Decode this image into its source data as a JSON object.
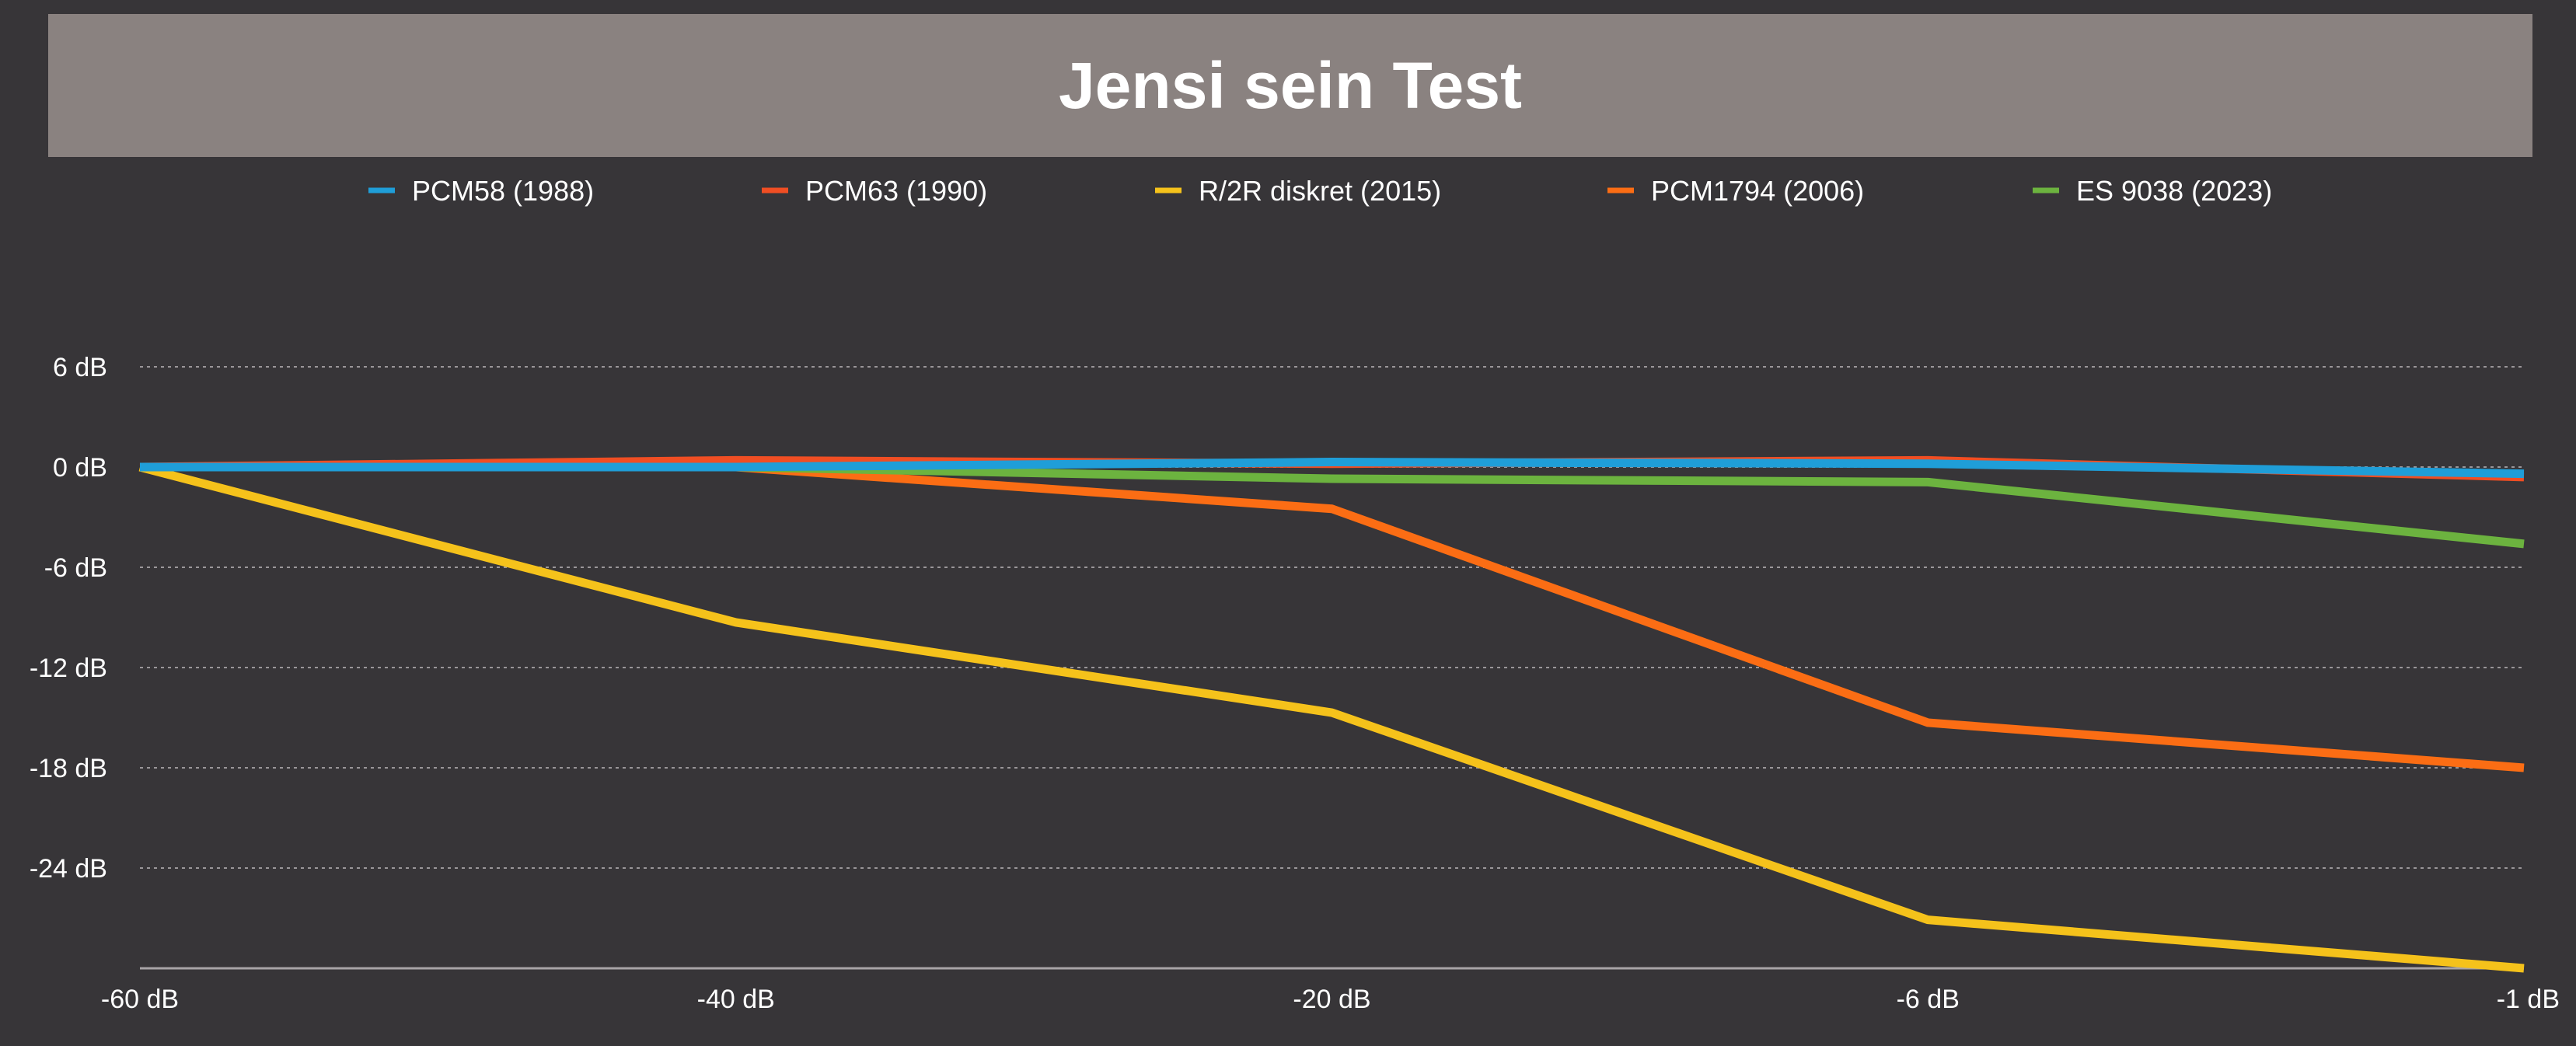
{
  "chart_data": {
    "type": "line",
    "title": "Jensi sein Test",
    "xlabel": "",
    "ylabel": "",
    "categories": [
      "-60 dB",
      "-40 dB",
      "-20 dB",
      "-6 dB",
      "-1 dB"
    ],
    "y_ticks": [
      {
        "value": 6,
        "label": "6 dB"
      },
      {
        "value": 0,
        "label": "0 dB"
      },
      {
        "value": -6,
        "label": "-6 dB"
      },
      {
        "value": -12,
        "label": "-12 dB"
      },
      {
        "value": -18,
        "label": "-18 dB"
      },
      {
        "value": -24,
        "label": "-24 dB"
      }
    ],
    "ylim": [
      -30,
      12
    ],
    "grid": true,
    "legend_position": "top",
    "series": [
      {
        "name": "PCM58 (1988)",
        "color": "#1f9ed8",
        "values": [
          0,
          0,
          0.3,
          0.2,
          -0.4
        ]
      },
      {
        "name": "PCM63 (1990)",
        "color": "#f04e23",
        "values": [
          0,
          0.4,
          0.2,
          0.4,
          -0.6
        ]
      },
      {
        "name": "R/2R diskret (2015)",
        "color": "#f5c21b",
        "values": [
          0,
          -9.3,
          -14.7,
          -27.1,
          -30
        ]
      },
      {
        "name": "PCM1794 (2006)",
        "color": "#fb6d14",
        "values": [
          0,
          0,
          -2.5,
          -15.3,
          -18
        ]
      },
      {
        "name": "ES 9038 (2023)",
        "color": "#6cb33f",
        "values": [
          0,
          0,
          -0.7,
          -0.9,
          -4.6
        ]
      }
    ]
  }
}
